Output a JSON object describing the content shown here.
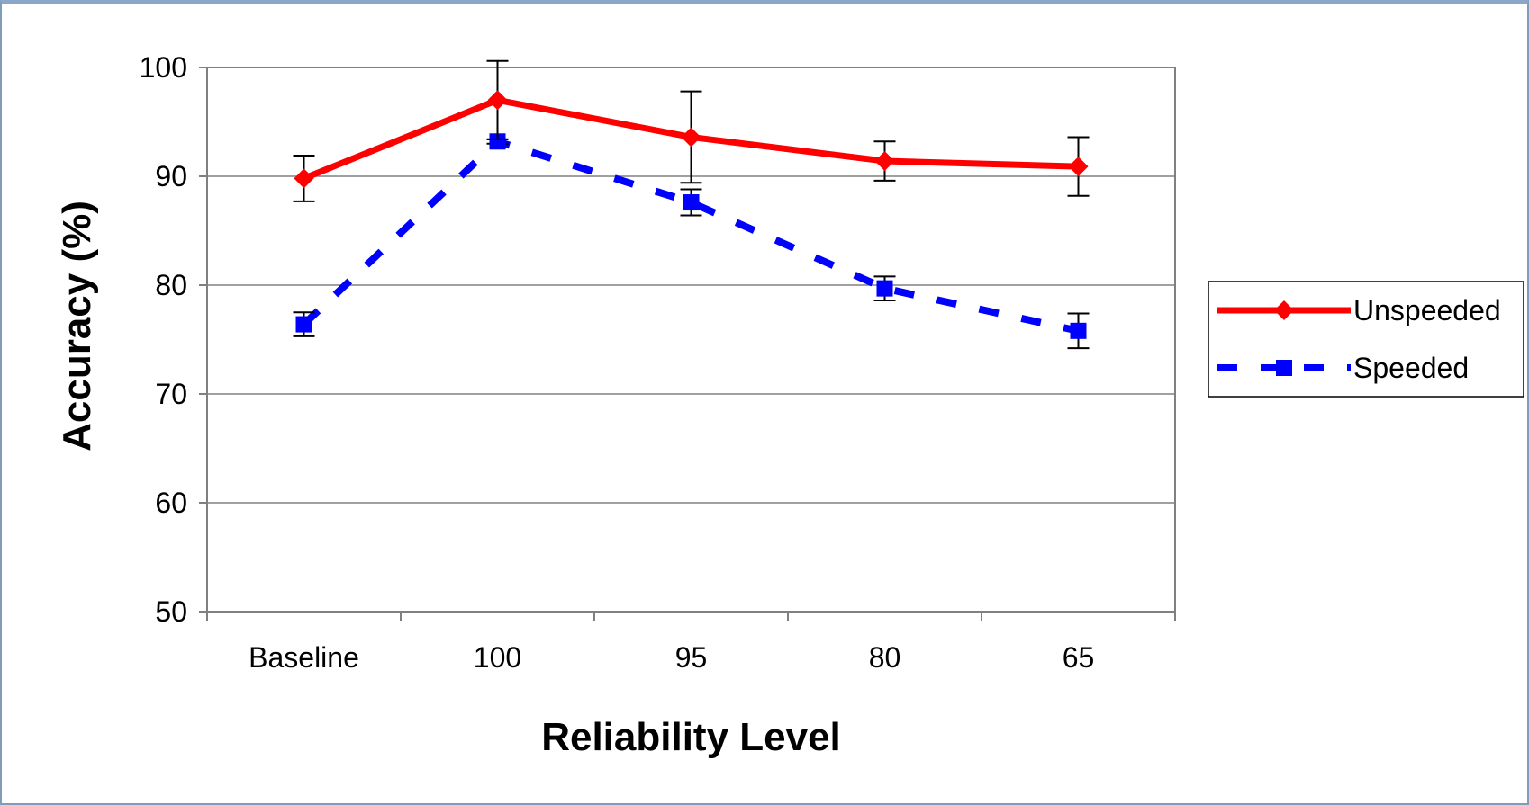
{
  "chart_data": {
    "type": "line",
    "xlabel": "Reliability Level",
    "ylabel": "Accuracy (%)",
    "categories": [
      "Baseline",
      "100",
      "95",
      "80",
      "65"
    ],
    "ylim": [
      50,
      100
    ],
    "yticks": [
      50,
      60,
      70,
      80,
      90,
      100
    ],
    "grid": "horizontal",
    "legend_position": "right",
    "series": [
      {
        "name": "Unspeeded",
        "color": "#ff0000",
        "line_style": "solid",
        "marker": "diamond",
        "values": [
          89.8,
          97.0,
          93.6,
          91.4,
          90.9
        ],
        "error": [
          2.1,
          3.6,
          4.2,
          1.8,
          2.7
        ]
      },
      {
        "name": "Speeded",
        "color": "#0000ff",
        "line_style": "dashed",
        "marker": "square",
        "values": [
          76.4,
          93.2,
          87.6,
          79.7,
          75.8
        ],
        "error": [
          1.1,
          0.2,
          1.2,
          1.1,
          1.6
        ]
      }
    ]
  }
}
